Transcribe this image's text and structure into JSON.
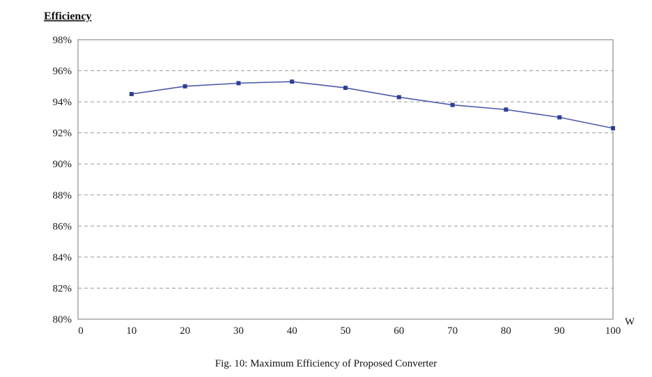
{
  "figure": {
    "caption": "Fig. 10: Maximum Efficiency of Proposed Converter"
  },
  "chart_data": {
    "type": "line",
    "title": "",
    "ylabel": "Efficiency",
    "xlabel": "W",
    "x": [
      10,
      20,
      30,
      40,
      50,
      60,
      70,
      80,
      90,
      100
    ],
    "series": [
      {
        "name": "Maximum Efficiency",
        "values": [
          94.5,
          95.0,
          95.2,
          95.3,
          94.9,
          94.3,
          93.8,
          93.5,
          93.0,
          92.3
        ]
      }
    ],
    "xlim": [
      0,
      100
    ],
    "ylim": [
      80,
      98
    ],
    "xticks": [
      0,
      10,
      20,
      30,
      40,
      50,
      60,
      70,
      80,
      90,
      100
    ],
    "yticks": [
      80,
      82,
      84,
      86,
      88,
      90,
      92,
      94,
      96,
      98
    ],
    "ytick_suffix": "%",
    "grid": true,
    "grid_style": "dashed",
    "legend_position": "none",
    "colors": {
      "line": "#4a5aa8",
      "marker": "#2e3f94",
      "grid": "#9b9b9b",
      "frame": "#8c8c8c",
      "text": "#1a1a1a"
    }
  }
}
